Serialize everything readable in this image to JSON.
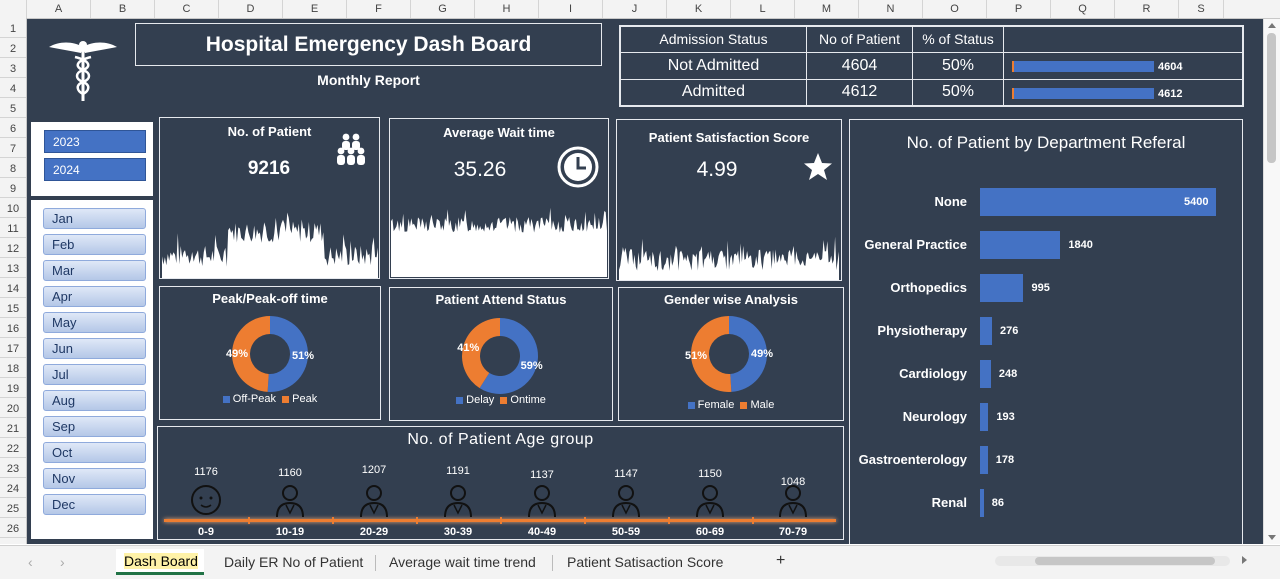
{
  "columns": [
    "A",
    "B",
    "C",
    "D",
    "E",
    "F",
    "G",
    "H",
    "I",
    "J",
    "K",
    "L",
    "M",
    "N",
    "O",
    "P",
    "Q",
    "R",
    "S"
  ],
  "rows": [
    "1",
    "2",
    "3",
    "4",
    "5",
    "6",
    "7",
    "8",
    "9",
    "10",
    "11",
    "12",
    "13",
    "14",
    "15",
    "16",
    "17",
    "18",
    "19",
    "20",
    "21",
    "22",
    "23",
    "24",
    "25",
    "26"
  ],
  "header": {
    "title": "Hospital Emergency Dash Board",
    "subtitle": "Monthly Report"
  },
  "admission": {
    "headers": [
      "Admission Status",
      "No of Patient",
      "% of Status"
    ],
    "rows": [
      {
        "status": "Not Admitted",
        "count": "4604",
        "pct": "50%",
        "bar_label": "4604",
        "fraction": 0.998
      },
      {
        "status": "Admitted",
        "count": "4612",
        "pct": "50%",
        "bar_label": "4612",
        "fraction": 1.0
      }
    ]
  },
  "years": [
    "2023",
    "2024"
  ],
  "months": [
    "Jan",
    "Feb",
    "Mar",
    "Apr",
    "May",
    "Jun",
    "Jul",
    "Aug",
    "Sep",
    "Oct",
    "Nov",
    "Dec"
  ],
  "kpi": {
    "patients": {
      "title": "No. of Patient",
      "value": "9216"
    },
    "wait": {
      "title": "Average Wait time",
      "value": "35.26"
    },
    "satisfaction": {
      "title": "Patient Satisfaction Score",
      "value": "4.99"
    }
  },
  "donuts": {
    "peak": {
      "title": "Peak/Peak-off time",
      "labels": [
        "Off-Peak",
        "Peak"
      ],
      "values": [
        51,
        49
      ],
      "texts": [
        "51%",
        "49%"
      ]
    },
    "attend": {
      "title": "Patient Attend Status",
      "labels": [
        "Delay",
        "Ontime"
      ],
      "values": [
        59,
        41
      ],
      "texts": [
        "59%",
        "41%"
      ]
    },
    "gender": {
      "title": "Gender wise Analysis",
      "labels": [
        "Female",
        "Male"
      ],
      "values": [
        49,
        51
      ],
      "texts": [
        "49%",
        "51%"
      ]
    }
  },
  "colors": {
    "blue": "#4472c4",
    "orange": "#ed7d31",
    "bg": "#333f50"
  },
  "chart_data": [
    {
      "type": "bar",
      "title": "No. of Patient by Department Referal",
      "categories": [
        "None",
        "General Practice",
        "Orthopedics",
        "Physiotherapy",
        "Cardiology",
        "Neurology",
        "Gastroenterology",
        "Renal"
      ],
      "values": [
        5400,
        1840,
        995,
        276,
        248,
        193,
        178,
        86
      ]
    },
    {
      "type": "bar",
      "title": "No. of Patient Age group",
      "categories": [
        "0-9",
        "10-19",
        "20-29",
        "30-39",
        "40-49",
        "50-59",
        "60-69",
        "70-79"
      ],
      "values": [
        1176,
        1160,
        1207,
        1191,
        1137,
        1147,
        1150,
        1048
      ],
      "value_texts": [
        "1176",
        "1160",
        "1207",
        "1191",
        "1137",
        "1147",
        "1150",
        "1048"
      ]
    }
  ],
  "tabs": [
    "Dash Board",
    "Daily ER No of Patient",
    "Average wait time trend",
    "Patient Satisaction Score"
  ],
  "tab_add": "+",
  "nav": {
    "prev": "‹",
    "next": "›"
  }
}
